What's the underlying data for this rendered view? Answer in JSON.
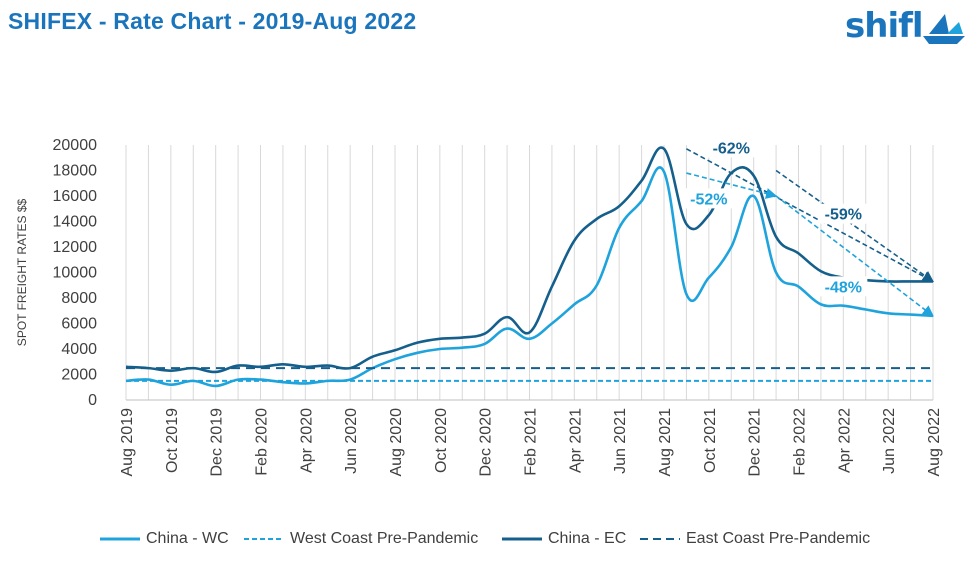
{
  "title": "SHIFEX - Rate Chart - 2019-Aug 2022",
  "logo": {
    "text": "shifl",
    "icon": "paper-boat-icon"
  },
  "colors": {
    "china_wc": "#1fa3dc",
    "china_ec": "#155f8c",
    "title": "#1b75bc",
    "grid": "#d9d9d9"
  },
  "chart_data": {
    "type": "line",
    "ylabel": "SPOT FREIGHT RATES $$",
    "xlabel": "",
    "ylim": [
      0,
      20000
    ],
    "yticks": [
      "0",
      "2000",
      "4000",
      "6000",
      "8000",
      "10000",
      "12000",
      "14000",
      "16000",
      "18000",
      "20000"
    ],
    "x": [
      "Aug 2019",
      "Sep 2019",
      "Oct 2019",
      "Nov 2019",
      "Dec 2019",
      "Jan 2020",
      "Feb 2020",
      "Mar 2020",
      "Apr 2020",
      "May 2020",
      "Jun 2020",
      "Jul 2020",
      "Aug 2020",
      "Sep 2020",
      "Oct 2020",
      "Nov 2020",
      "Dec 2020",
      "Jan 2021",
      "Feb 2021",
      "Mar 2021",
      "Apr 2021",
      "May 2021",
      "Jun 2021",
      "Jul 2021",
      "Aug 2021",
      "Sep 2021",
      "Oct 2021",
      "Nov 2021",
      "Dec 2021",
      "Jan 2022",
      "Feb 2022",
      "Mar 2022",
      "Apr 2022",
      "May 2022",
      "Jun 2022",
      "Jul 2022",
      "Aug 2022"
    ],
    "xtick_labels": [
      "Aug 2019",
      "Oct 2019",
      "Dec 2019",
      "Feb 2020",
      "Apr 2020",
      "Jun 2020",
      "Aug 2020",
      "Oct 2020",
      "Dec 2020",
      "Feb 2021",
      "Apr 2021",
      "Jun 2021",
      "Aug 2021",
      "Oct 2021",
      "Dec 2021",
      "Feb 2022",
      "Apr 2022",
      "Jun 2022",
      "Aug 2022"
    ],
    "series": [
      {
        "name": "China - WC",
        "style": "solid",
        "color": "#1fa3dc",
        "values": [
          1500,
          1600,
          1200,
          1500,
          1100,
          1600,
          1600,
          1400,
          1300,
          1500,
          1600,
          2500,
          3200,
          3700,
          4000,
          4100,
          4400,
          5600,
          4800,
          6000,
          7500,
          9000,
          13500,
          15600,
          17900,
          8300,
          9600,
          12000,
          16000,
          10000,
          8900,
          7500,
          7400,
          7100,
          6800,
          6700,
          6600
        ]
      },
      {
        "name": "West Coast Pre-Pandemic",
        "style": "dashed",
        "color": "#1fa3dc",
        "values": [
          1500,
          1500,
          1500,
          1500,
          1500,
          1500,
          1500,
          1500,
          1500,
          1500,
          1500,
          1500,
          1500,
          1500,
          1500,
          1500,
          1500,
          1500,
          1500,
          1500,
          1500,
          1500,
          1500,
          1500,
          1500,
          1500,
          1500,
          1500,
          1500,
          1500,
          1500,
          1500,
          1500,
          1500,
          1500,
          1500,
          1500
        ]
      },
      {
        "name": "China - EC",
        "style": "solid",
        "color": "#155f8c",
        "values": [
          2600,
          2500,
          2300,
          2500,
          2200,
          2700,
          2600,
          2800,
          2600,
          2700,
          2500,
          3400,
          3900,
          4500,
          4800,
          4900,
          5200,
          6500,
          5300,
          8900,
          12500,
          14200,
          15200,
          17200,
          19700,
          13800,
          14500,
          17800,
          17600,
          12800,
          11500,
          10100,
          9600,
          9400,
          9300,
          9300,
          9300
        ]
      },
      {
        "name": "East Coast Pre-Pandemic",
        "style": "dashed",
        "color": "#155f8c",
        "values": [
          2500,
          2500,
          2500,
          2500,
          2500,
          2500,
          2500,
          2500,
          2500,
          2500,
          2500,
          2500,
          2500,
          2500,
          2500,
          2500,
          2500,
          2500,
          2500,
          2500,
          2500,
          2500,
          2500,
          2500,
          2500,
          2500,
          2500,
          2500,
          2500,
          2500,
          2500,
          2500,
          2500,
          2500,
          2500,
          2500,
          2500
        ]
      }
    ],
    "annotations": [
      {
        "text": "-62%",
        "from_x": "Sep 2021",
        "from_y": 19700,
        "to_x": "Aug 2022",
        "to_y": 9300,
        "color": "#155f8c",
        "label_x": "Nov 2021",
        "label_y": 19500
      },
      {
        "text": "-59%",
        "from_x": "Jan 2022",
        "from_y": 18000,
        "to_x": "Aug 2022",
        "to_y": 9300,
        "color": "#155f8c",
        "label_x": "Apr 2022",
        "label_y": 14300
      },
      {
        "text": "-52%",
        "from_x": "Sep 2021",
        "from_y": 17800,
        "to_x": "Jan 2022",
        "to_y": 16000,
        "color": "#1fa3dc",
        "label_x": "Oct 2021",
        "label_y": 15500
      },
      {
        "text": "-48%",
        "from_x": "Jan 2022",
        "from_y": 16000,
        "to_x": "Aug 2022",
        "to_y": 6600,
        "color": "#1fa3dc",
        "label_x": "Apr 2022",
        "label_y": 8600
      }
    ],
    "grid": "vertical",
    "legend_position": "bottom"
  }
}
